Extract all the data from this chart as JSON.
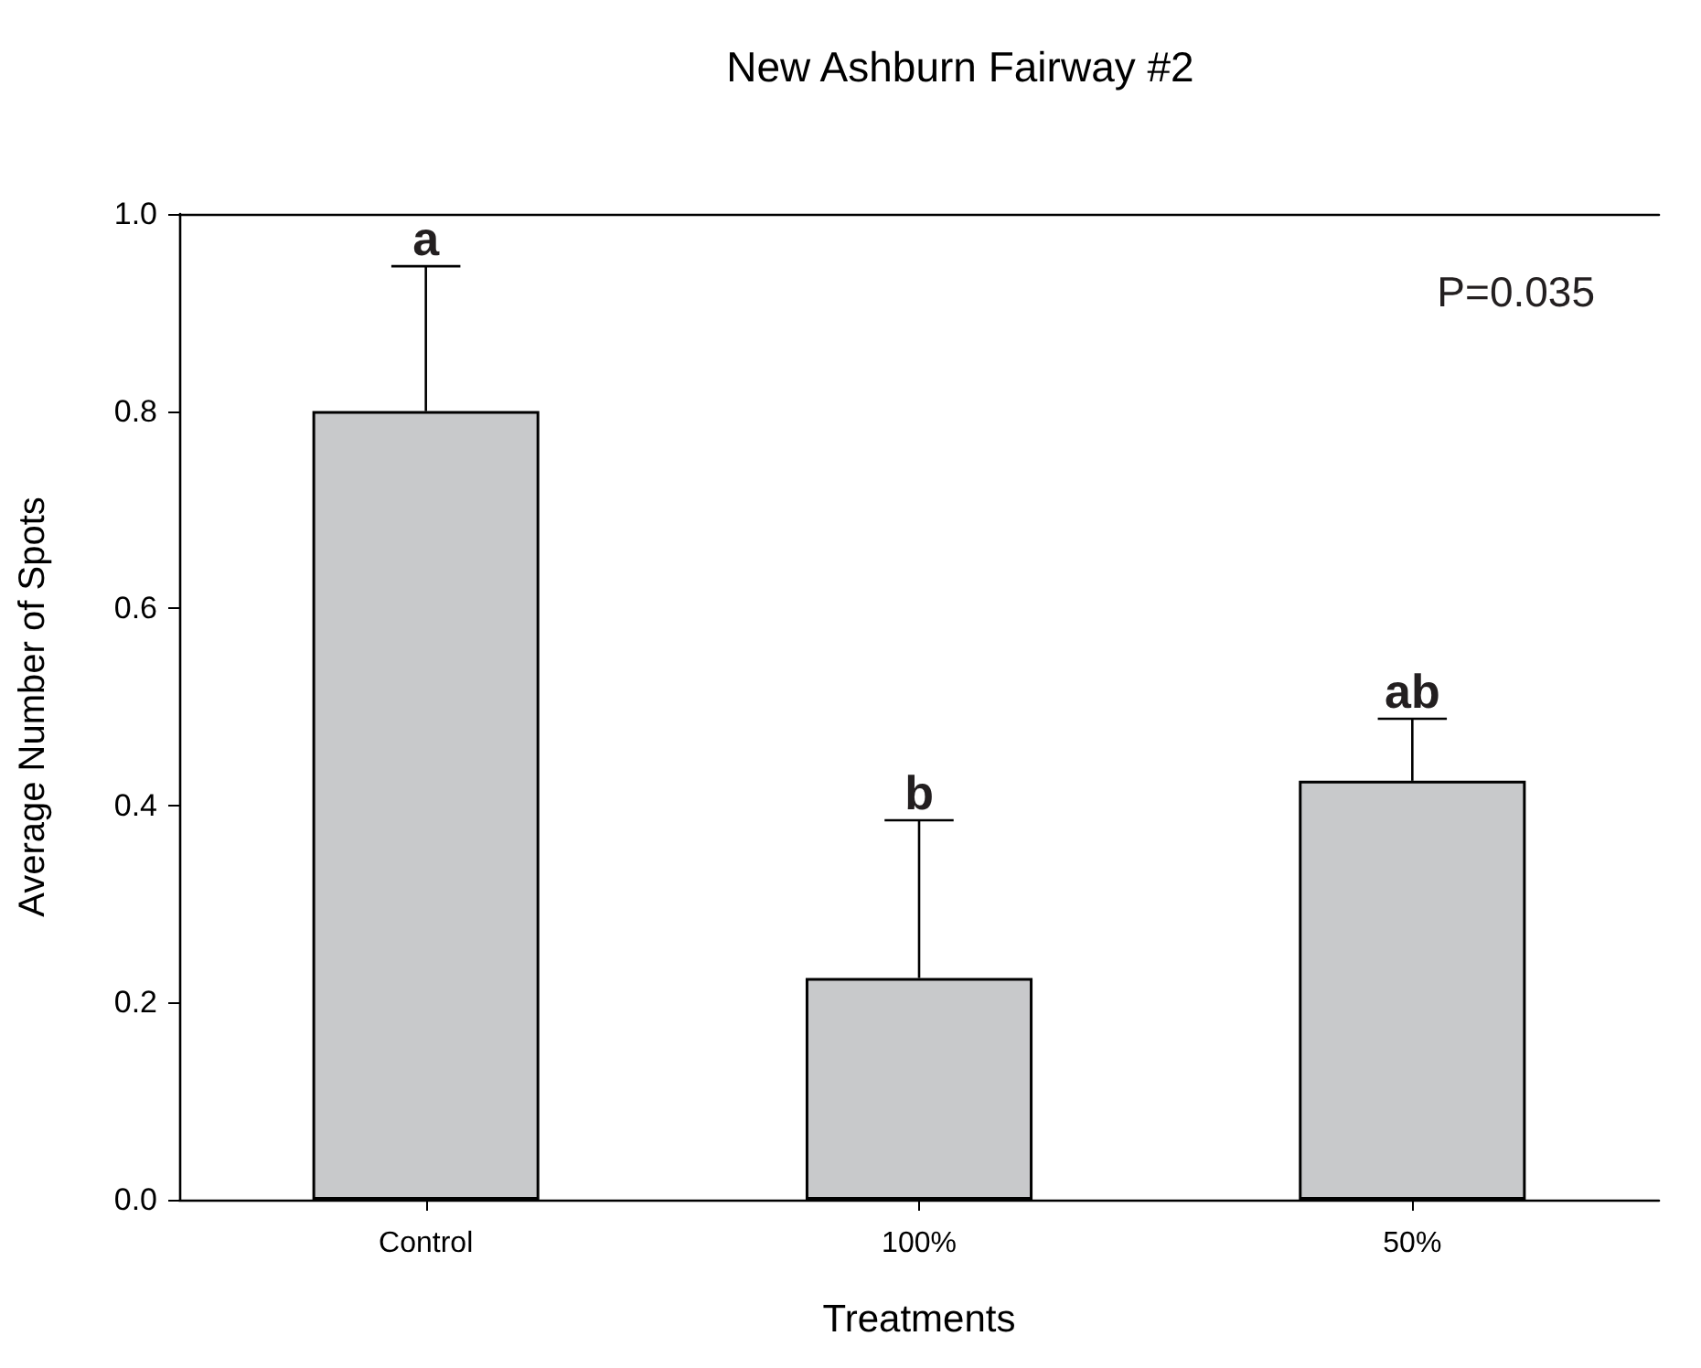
{
  "chart_data": {
    "type": "bar",
    "title": "New Ashburn Fairway #2",
    "xlabel": "Treatments",
    "ylabel": "Average Number of Spots",
    "categories": [
      "Control",
      "100%",
      "50%"
    ],
    "values": [
      0.8,
      0.225,
      0.425
    ],
    "errors": [
      [
        0.8,
        0.947
      ],
      [
        0.225,
        0.385
      ],
      [
        0.425,
        0.488
      ]
    ],
    "color": "#c8c9cb",
    "ylim": [
      0,
      1
    ],
    "yticks": [
      {
        "value": 0,
        "label": "0.0"
      },
      0.2,
      0.4,
      0.6,
      0.8,
      {
        "value": 1,
        "label": "1.0"
      }
    ],
    "grid": false,
    "annotations": [
      {
        "text": "a",
        "x": "Control",
        "y": 0.947
      },
      {
        "text": "b",
        "x": "100%",
        "y": 0.385
      },
      {
        "text": "ab",
        "x": "50%",
        "y": 0.488
      },
      "P=0.035"
    ]
  }
}
